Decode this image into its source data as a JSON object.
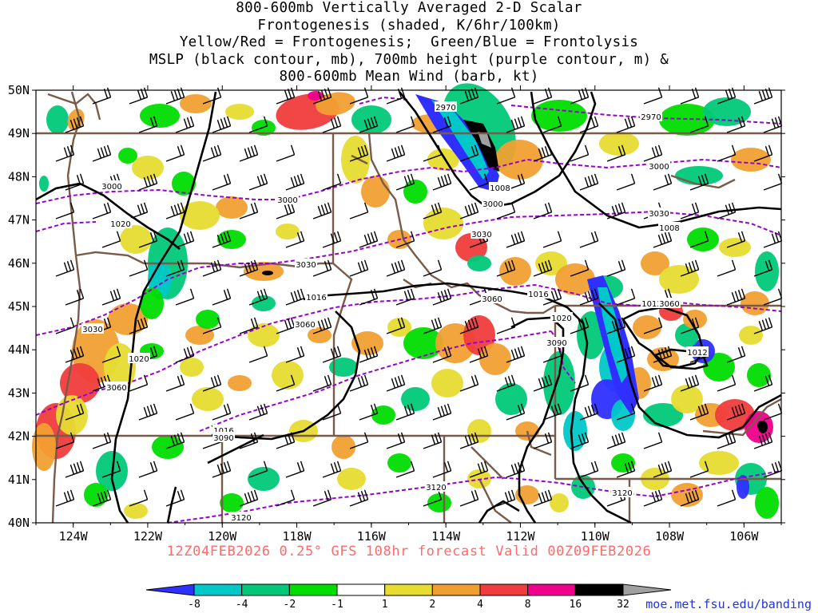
{
  "title_lines": [
    "800-600mb Vertically Averaged 2-D Scalar",
    "Frontogenesis (shaded, K/6hr/100km)",
    "Yellow/Red = Frontogenesis;  Green/Blue = Frontolysis",
    "MSLP (black contour, mb), 700mb height (purple contour, m) &",
    "800-600mb Mean Wind (barb, kt)"
  ],
  "footer": "12Z04FEB2026 0.25° GFS 108hr forecast Valid 00Z09FEB2026",
  "credit": "moe.met.fsu.edu/banding",
  "map": {
    "lon_range": [
      -125.0,
      -105.0
    ],
    "lat_range": [
      40,
      50
    ],
    "lat_labels": [
      "50N",
      "49N",
      "48N",
      "47N",
      "46N",
      "45N",
      "44N",
      "43N",
      "42N",
      "41N",
      "40N"
    ],
    "lon_labels": [
      "124W",
      "122W",
      "120W",
      "118W",
      "116W",
      "114W",
      "112W",
      "110W",
      "108W",
      "106W"
    ],
    "mslp_labels": [
      "1008",
      "1008",
      "1012",
      "1016",
      "1016",
      "1016",
      "1020",
      "1020",
      "1020",
      "1012"
    ],
    "height_labels": [
      "2970",
      "2970",
      "3000",
      "3000",
      "3000",
      "3000",
      "3030",
      "3030",
      "3030",
      "3030",
      "3060",
      "3060",
      "3060",
      "3060",
      "3090",
      "3090",
      "3120",
      "3120",
      "3120"
    ]
  },
  "colorbar": {
    "ticks": [
      "-8",
      "-4",
      "-2",
      "-1",
      "1",
      "2",
      "4",
      "8",
      "16",
      "32"
    ],
    "colors": [
      "#2f2fff",
      "#00c8c8",
      "#00c878",
      "#00dc00",
      "#ffffff",
      "#e6dc32",
      "#f0a032",
      "#f03c3c",
      "#f0008c",
      "#000000",
      "#a0a0a0"
    ]
  },
  "colors": {
    "mslp": "#000000",
    "height": "#9a00d0",
    "border": "#7a5a48",
    "barb": "#000000"
  }
}
